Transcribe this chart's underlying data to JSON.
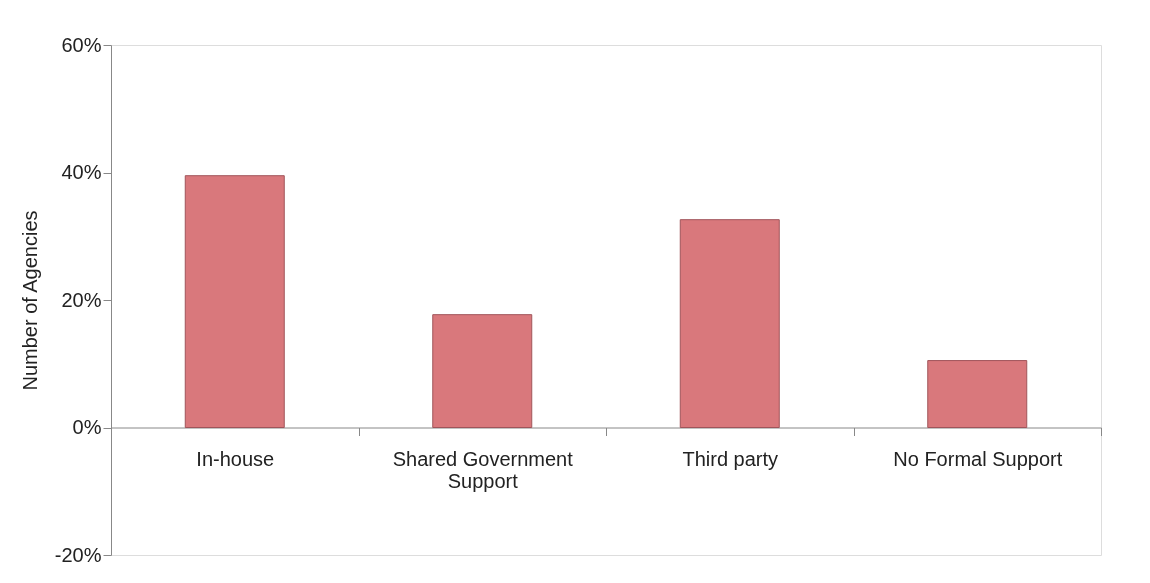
{
  "chart_data": {
    "type": "bar",
    "ylabel": "Number of Agencies",
    "categories": [
      "In-house",
      "Shared Government Support",
      "Third party",
      "No Formal Support"
    ],
    "values": [
      39.5,
      17.7,
      32.6,
      10.5
    ],
    "color": "#d9787c",
    "ylim": [
      -20,
      60
    ],
    "yticks": [
      {
        "value": -20,
        "label": "-20%"
      },
      {
        "value": 0,
        "label": "0%"
      },
      {
        "value": 20,
        "label": "20%"
      },
      {
        "value": 40,
        "label": "40%"
      },
      {
        "value": 60,
        "label": "60%"
      }
    ],
    "grid": false
  }
}
